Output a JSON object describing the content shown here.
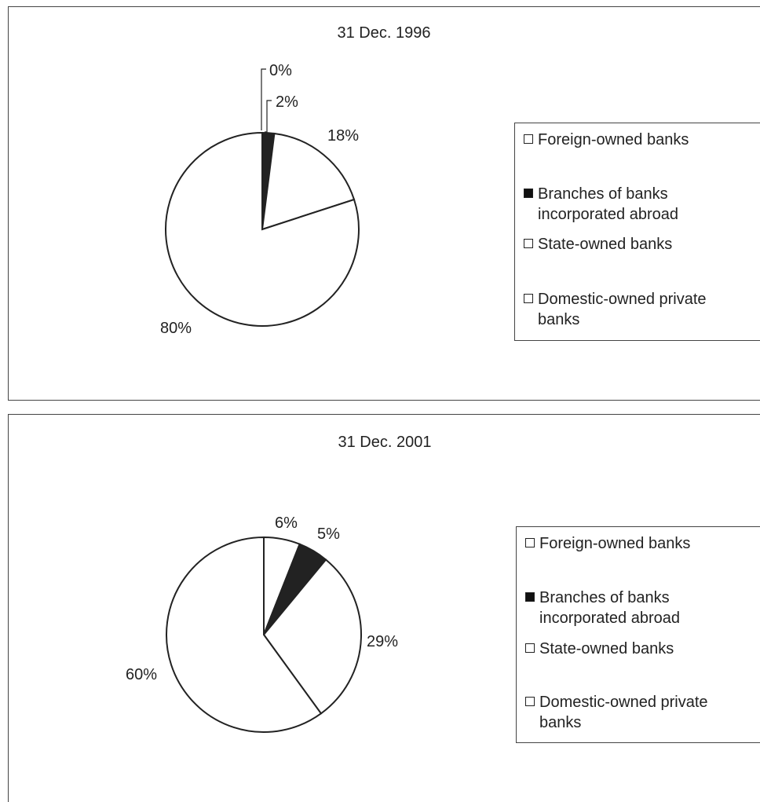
{
  "chart_data": [
    {
      "type": "pie",
      "title": "31 Dec. 1996",
      "labels": [
        "Foreign-owned banks",
        "Branches of banks incorporated abroad",
        "State-owned banks",
        "Domestic-owned private banks"
      ],
      "values": [
        0,
        2,
        18,
        80
      ],
      "value_labels": [
        "0%",
        "2%",
        "18%",
        "80%"
      ],
      "colors": [
        "#ffffff",
        "#222222",
        "#ffffff",
        "#ffffff"
      ],
      "legend_position": "right"
    },
    {
      "type": "pie",
      "title": "31 Dec. 2001",
      "labels": [
        "Foreign-owned banks",
        "Branches of banks incorporated abroad",
        "State-owned banks",
        "Domestic-owned private banks"
      ],
      "values": [
        6,
        5,
        29,
        60
      ],
      "value_labels": [
        "6%",
        "5%",
        "29%",
        "60%"
      ],
      "colors": [
        "#ffffff",
        "#222222",
        "#ffffff",
        "#ffffff"
      ],
      "legend_position": "right"
    }
  ],
  "legend": {
    "items": [
      {
        "label_line1": "Foreign-owned banks",
        "label_line2": "",
        "swatch": "white"
      },
      {
        "label_line1": "Branches of banks",
        "label_line2": "incorporated abroad",
        "swatch": "black"
      },
      {
        "label_line1": "State-owned banks",
        "label_line2": "",
        "swatch": "white"
      },
      {
        "label_line1": "Domestic-owned private",
        "label_line2": "banks",
        "swatch": "white"
      }
    ]
  }
}
